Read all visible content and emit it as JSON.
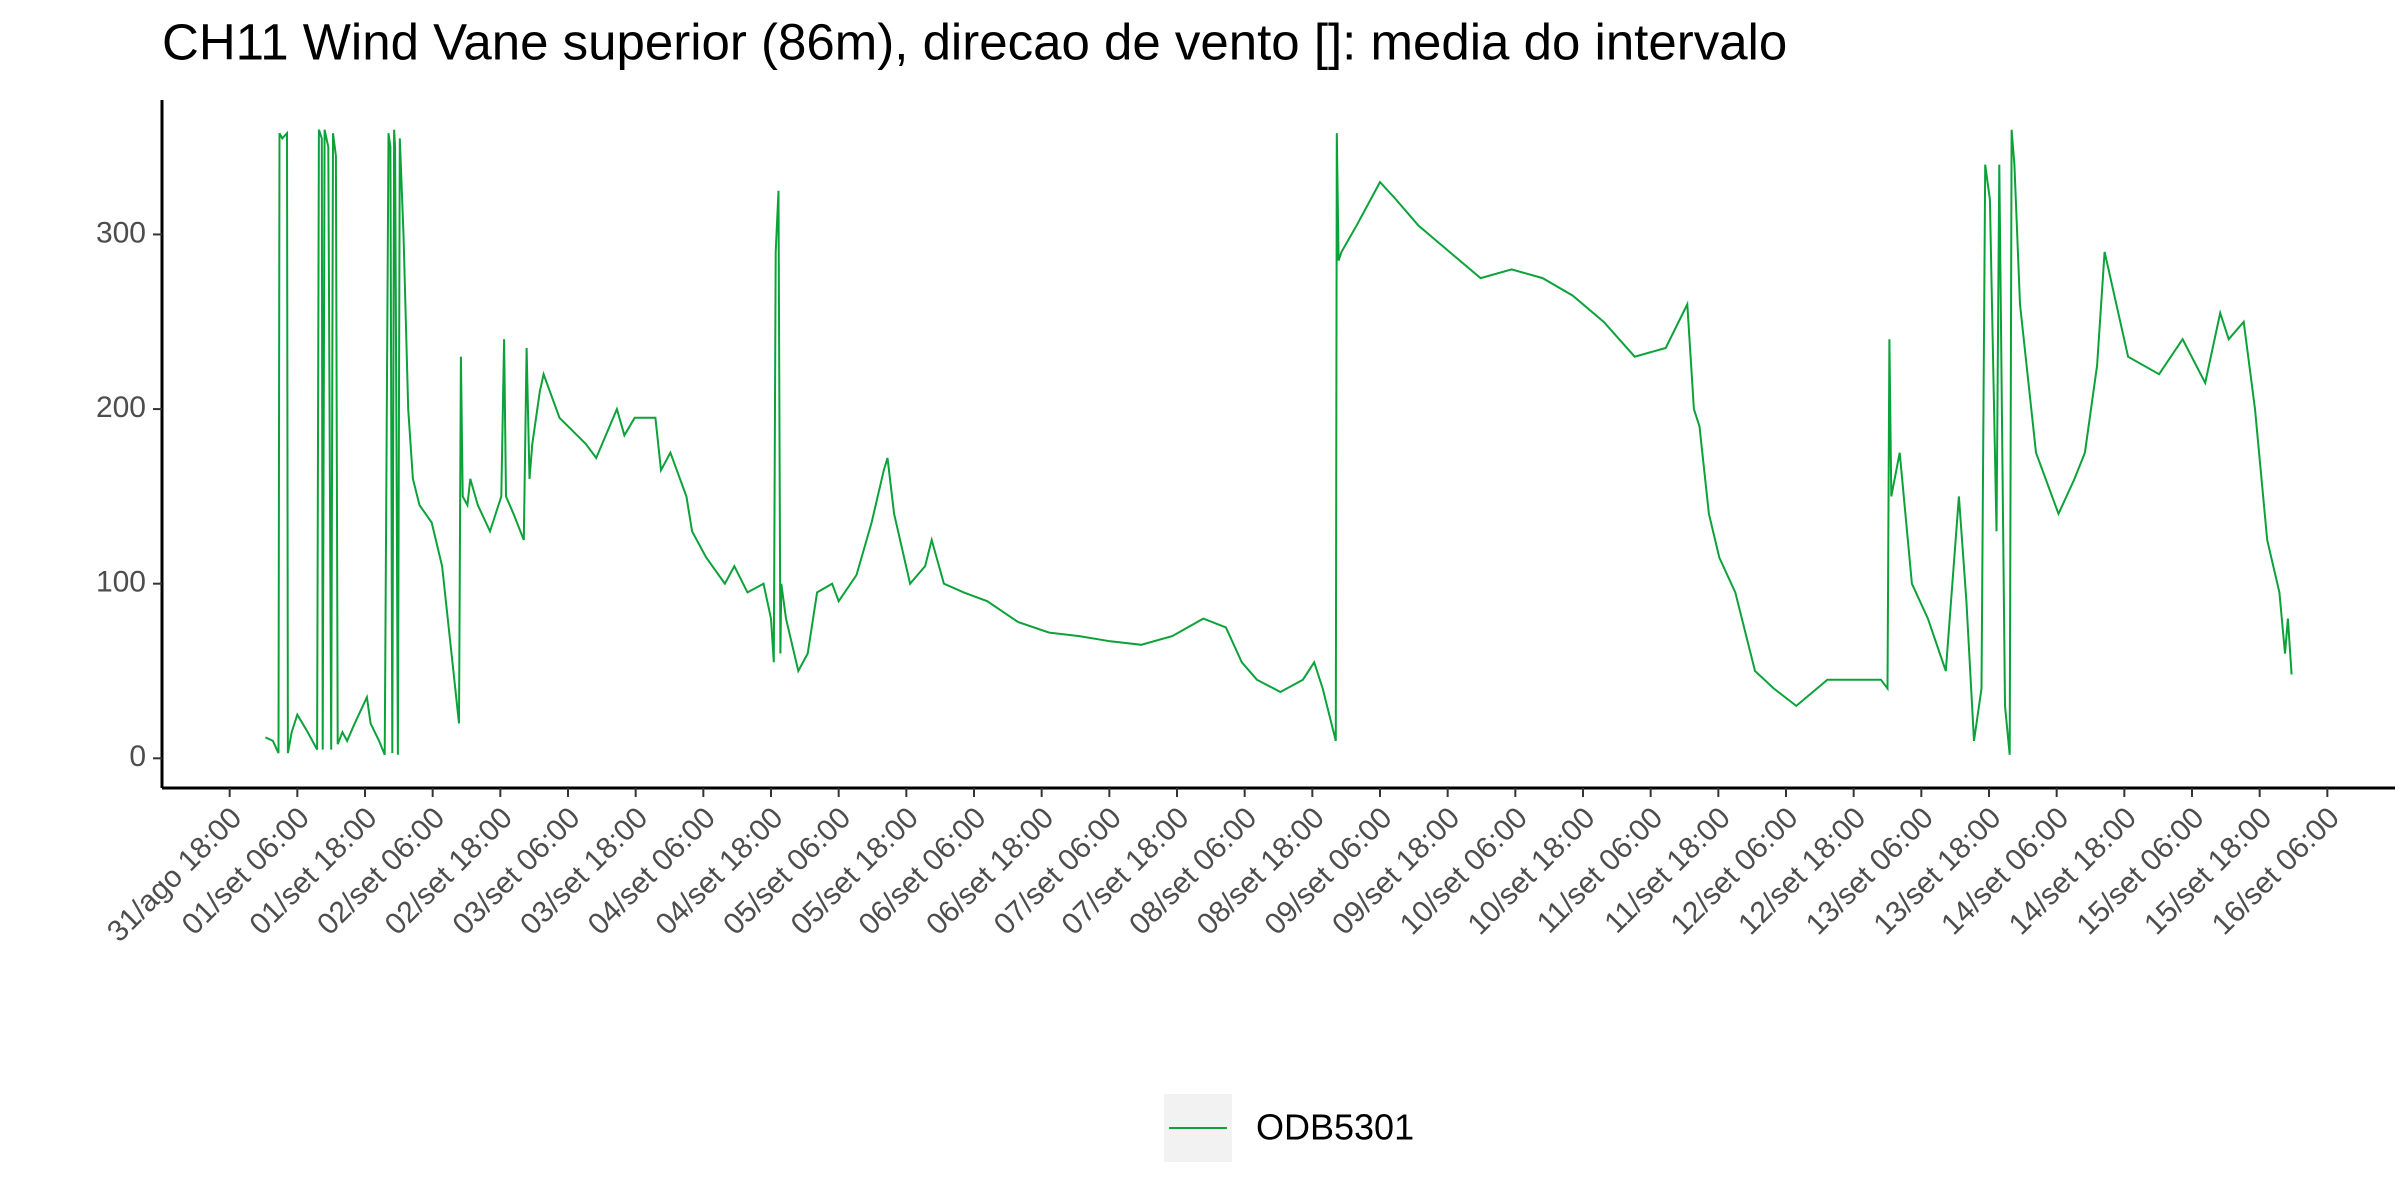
{
  "chart_data": {
    "type": "line",
    "title": "CH11 Wind Vane superior (86m), direcao de vento []: media do intervalo",
    "xlim": [
      "31/ago 06:00",
      "16/set 18:00"
    ],
    "xticks": [
      "31/ago 18:00",
      "01/set 06:00",
      "01/set 18:00",
      "02/set 06:00",
      "02/set 18:00",
      "03/set 06:00",
      "03/set 18:00",
      "04/set 06:00",
      "04/set 18:00",
      "05/set 06:00",
      "05/set 18:00",
      "06/set 06:00",
      "06/set 18:00",
      "07/set 06:00",
      "07/set 18:00",
      "08/set 06:00",
      "08/set 18:00",
      "09/set 06:00",
      "09/set 18:00",
      "10/set 06:00",
      "10/set 18:00",
      "11/set 06:00",
      "11/set 18:00",
      "12/set 06:00",
      "12/set 18:00",
      "13/set 06:00",
      "13/set 18:00",
      "14/set 06:00",
      "14/set 18:00",
      "15/set 06:00",
      "15/set 18:00",
      "16/set 06:00"
    ],
    "ylim": [
      -17,
      377
    ],
    "yticks": [
      0,
      100,
      200,
      300
    ],
    "grid": false,
    "legend": "bottom",
    "x": [
      "01/set 00:20",
      "01/set 01:40",
      "01/set 02:40",
      "01/set 02:50",
      "01/set 03:20",
      "01/set 04:10",
      "01/set 04:20",
      "01/set 05:00",
      "01/set 06:00",
      "01/set 07:50",
      "01/set 09:30",
      "01/set 09:50",
      "01/set 10:20",
      "01/set 10:30",
      "01/set 10:50",
      "01/set 11:30",
      "01/set 12:00",
      "01/set 12:20",
      "01/set 12:50",
      "01/set 13:10",
      "01/set 14:00",
      "01/set 14:50",
      "01/set 16:10",
      "01/set 18:20",
      "01/set 19:00",
      "01/set 20:30",
      "01/set 21:30",
      "01/set 22:10",
      "01/set 22:30",
      "01/set 22:50",
      "01/set 23:10",
      "01/set 23:20",
      "01/set 23:50",
      "02/set 00:10",
      "02/set 00:50",
      "02/set 01:40",
      "02/set 02:30",
      "02/set 03:40",
      "02/set 05:50",
      "02/set 07:40",
      "02/set 09:20",
      "02/set 10:40",
      "02/set 11:00",
      "02/set 11:20",
      "02/set 12:10",
      "02/set 12:40",
      "02/set 14:00",
      "02/set 16:10",
      "02/set 18:10",
      "02/set 18:40",
      "02/set 19:00",
      "02/set 20:20",
      "02/set 22:10",
      "02/set 22:40",
      "02/set 23:10",
      "02/set 23:40",
      "03/set 01:00",
      "03/set 01:40",
      "03/set 04:30",
      "03/set 09:10",
      "03/set 11:00",
      "03/set 14:40",
      "03/set 16:00",
      "03/set 17:50",
      "03/set 21:30",
      "03/set 22:30",
      "04/set 00:10",
      "04/set 03:00",
      "04/set 04:00",
      "04/set 06:30",
      "04/set 09:50",
      "04/set 11:30",
      "04/set 13:50",
      "04/set 16:40",
      "04/set 18:00",
      "04/set 18:30",
      "04/set 18:50",
      "04/set 19:20",
      "04/set 19:40",
      "04/set 19:50",
      "04/set 20:40",
      "04/set 22:50",
      "05/set 00:30",
      "05/set 02:10",
      "05/set 04:50",
      "05/set 06:00",
      "05/set 09:10",
      "05/set 11:50",
      "05/set 14:00",
      "05/set 14:40",
      "05/set 15:50",
      "05/set 18:40",
      "05/set 21:20",
      "05/set 22:30",
      "06/set 00:40",
      "06/set 04:10",
      "06/set 08:20",
      "06/set 13:50",
      "06/set 19:20",
      "07/set 00:40",
      "07/set 06:10",
      "07/set 11:40",
      "07/set 17:10",
      "07/set 22:40",
      "08/set 02:40",
      "08/set 05:30",
      "08/set 08:10",
      "08/set 12:20",
      "08/set 16:20",
      "08/set 18:20",
      "08/set 19:50",
      "08/set 22:10",
      "08/set 22:20",
      "08/set 22:40",
      "08/set 23:10",
      "09/set 01:50",
      "09/set 06:00",
      "09/set 08:50",
      "09/set 12:50",
      "09/set 18:20",
      "09/set 23:50",
      "10/set 05:20",
      "10/set 10:50",
      "10/set 16:10",
      "10/set 21:40",
      "11/set 03:10",
      "11/set 08:40",
      "11/set 12:30",
      "11/set 13:40",
      "11/set 14:40",
      "11/set 16:20",
      "11/set 18:10",
      "11/set 21:00",
      "12/set 00:30",
      "12/set 03:50",
      "12/set 07:50",
      "12/set 13:20",
      "12/set 18:50",
      "12/set 22:50",
      "13/set 00:00",
      "13/set 00:20",
      "13/set 00:40",
      "13/set 02:10",
      "13/set 04:20",
      "13/set 07:10",
      "13/set 10:20",
      "13/set 12:40",
      "13/set 14:00",
      "13/set 15:20",
      "13/set 16:40",
      "13/set 17:20",
      "13/set 18:10",
      "13/set 19:20",
      "13/set 19:50",
      "13/set 20:50",
      "13/set 21:40",
      "13/set 22:00",
      "13/set 22:30",
      "13/set 23:30",
      "14/set 02:20",
      "14/set 06:20",
      "14/set 09:10",
      "14/set 11:00",
      "14/set 13:10",
      "14/set 14:30",
      "14/set 18:40",
      "15/set 00:10",
      "15/set 04:20",
      "15/set 08:20",
      "15/set 11:00",
      "15/set 12:30",
      "15/set 15:10",
      "15/set 17:10",
      "15/set 19:20",
      "15/set 21:30",
      "15/set 22:30",
      "15/set 23:00",
      "15/set 23:40"
    ],
    "series": [
      {
        "name": "ODB5301",
        "color": "#0ca23a",
        "values": [
          12,
          10,
          3,
          358,
          355,
          358,
          3,
          15,
          25,
          15,
          5,
          360,
          355,
          5,
          360,
          350,
          5,
          358,
          345,
          8,
          15,
          10,
          20,
          35,
          20,
          10,
          2,
          358,
          350,
          3,
          360,
          350,
          2,
          355,
          300,
          200,
          160,
          145,
          135,
          110,
          60,
          20,
          230,
          150,
          145,
          160,
          145,
          130,
          150,
          240,
          150,
          140,
          125,
          235,
          160,
          180,
          210,
          220,
          195,
          180,
          172,
          200,
          185,
          195,
          195,
          165,
          175,
          150,
          130,
          115,
          100,
          110,
          95,
          100,
          80,
          55,
          290,
          325,
          60,
          100,
          80,
          50,
          60,
          95,
          100,
          90,
          105,
          135,
          165,
          172,
          140,
          100,
          110,
          125,
          100,
          95,
          90,
          78,
          72,
          70,
          67,
          65,
          70,
          80,
          75,
          55,
          45,
          38,
          45,
          55,
          40,
          10,
          358,
          285,
          290,
          305,
          330,
          320,
          305,
          290,
          275,
          280,
          275,
          265,
          250,
          230,
          235,
          260,
          200,
          190,
          140,
          115,
          95,
          50,
          40,
          30,
          45,
          45,
          45,
          40,
          240,
          150,
          175,
          100,
          80,
          50,
          150,
          90,
          10,
          40,
          340,
          320,
          130,
          340,
          30,
          2,
          360,
          340,
          260,
          175,
          140,
          160,
          175,
          225,
          290,
          230,
          220,
          240,
          215,
          255,
          240,
          250,
          200,
          125,
          95,
          60,
          80,
          48
        ]
      }
    ]
  }
}
